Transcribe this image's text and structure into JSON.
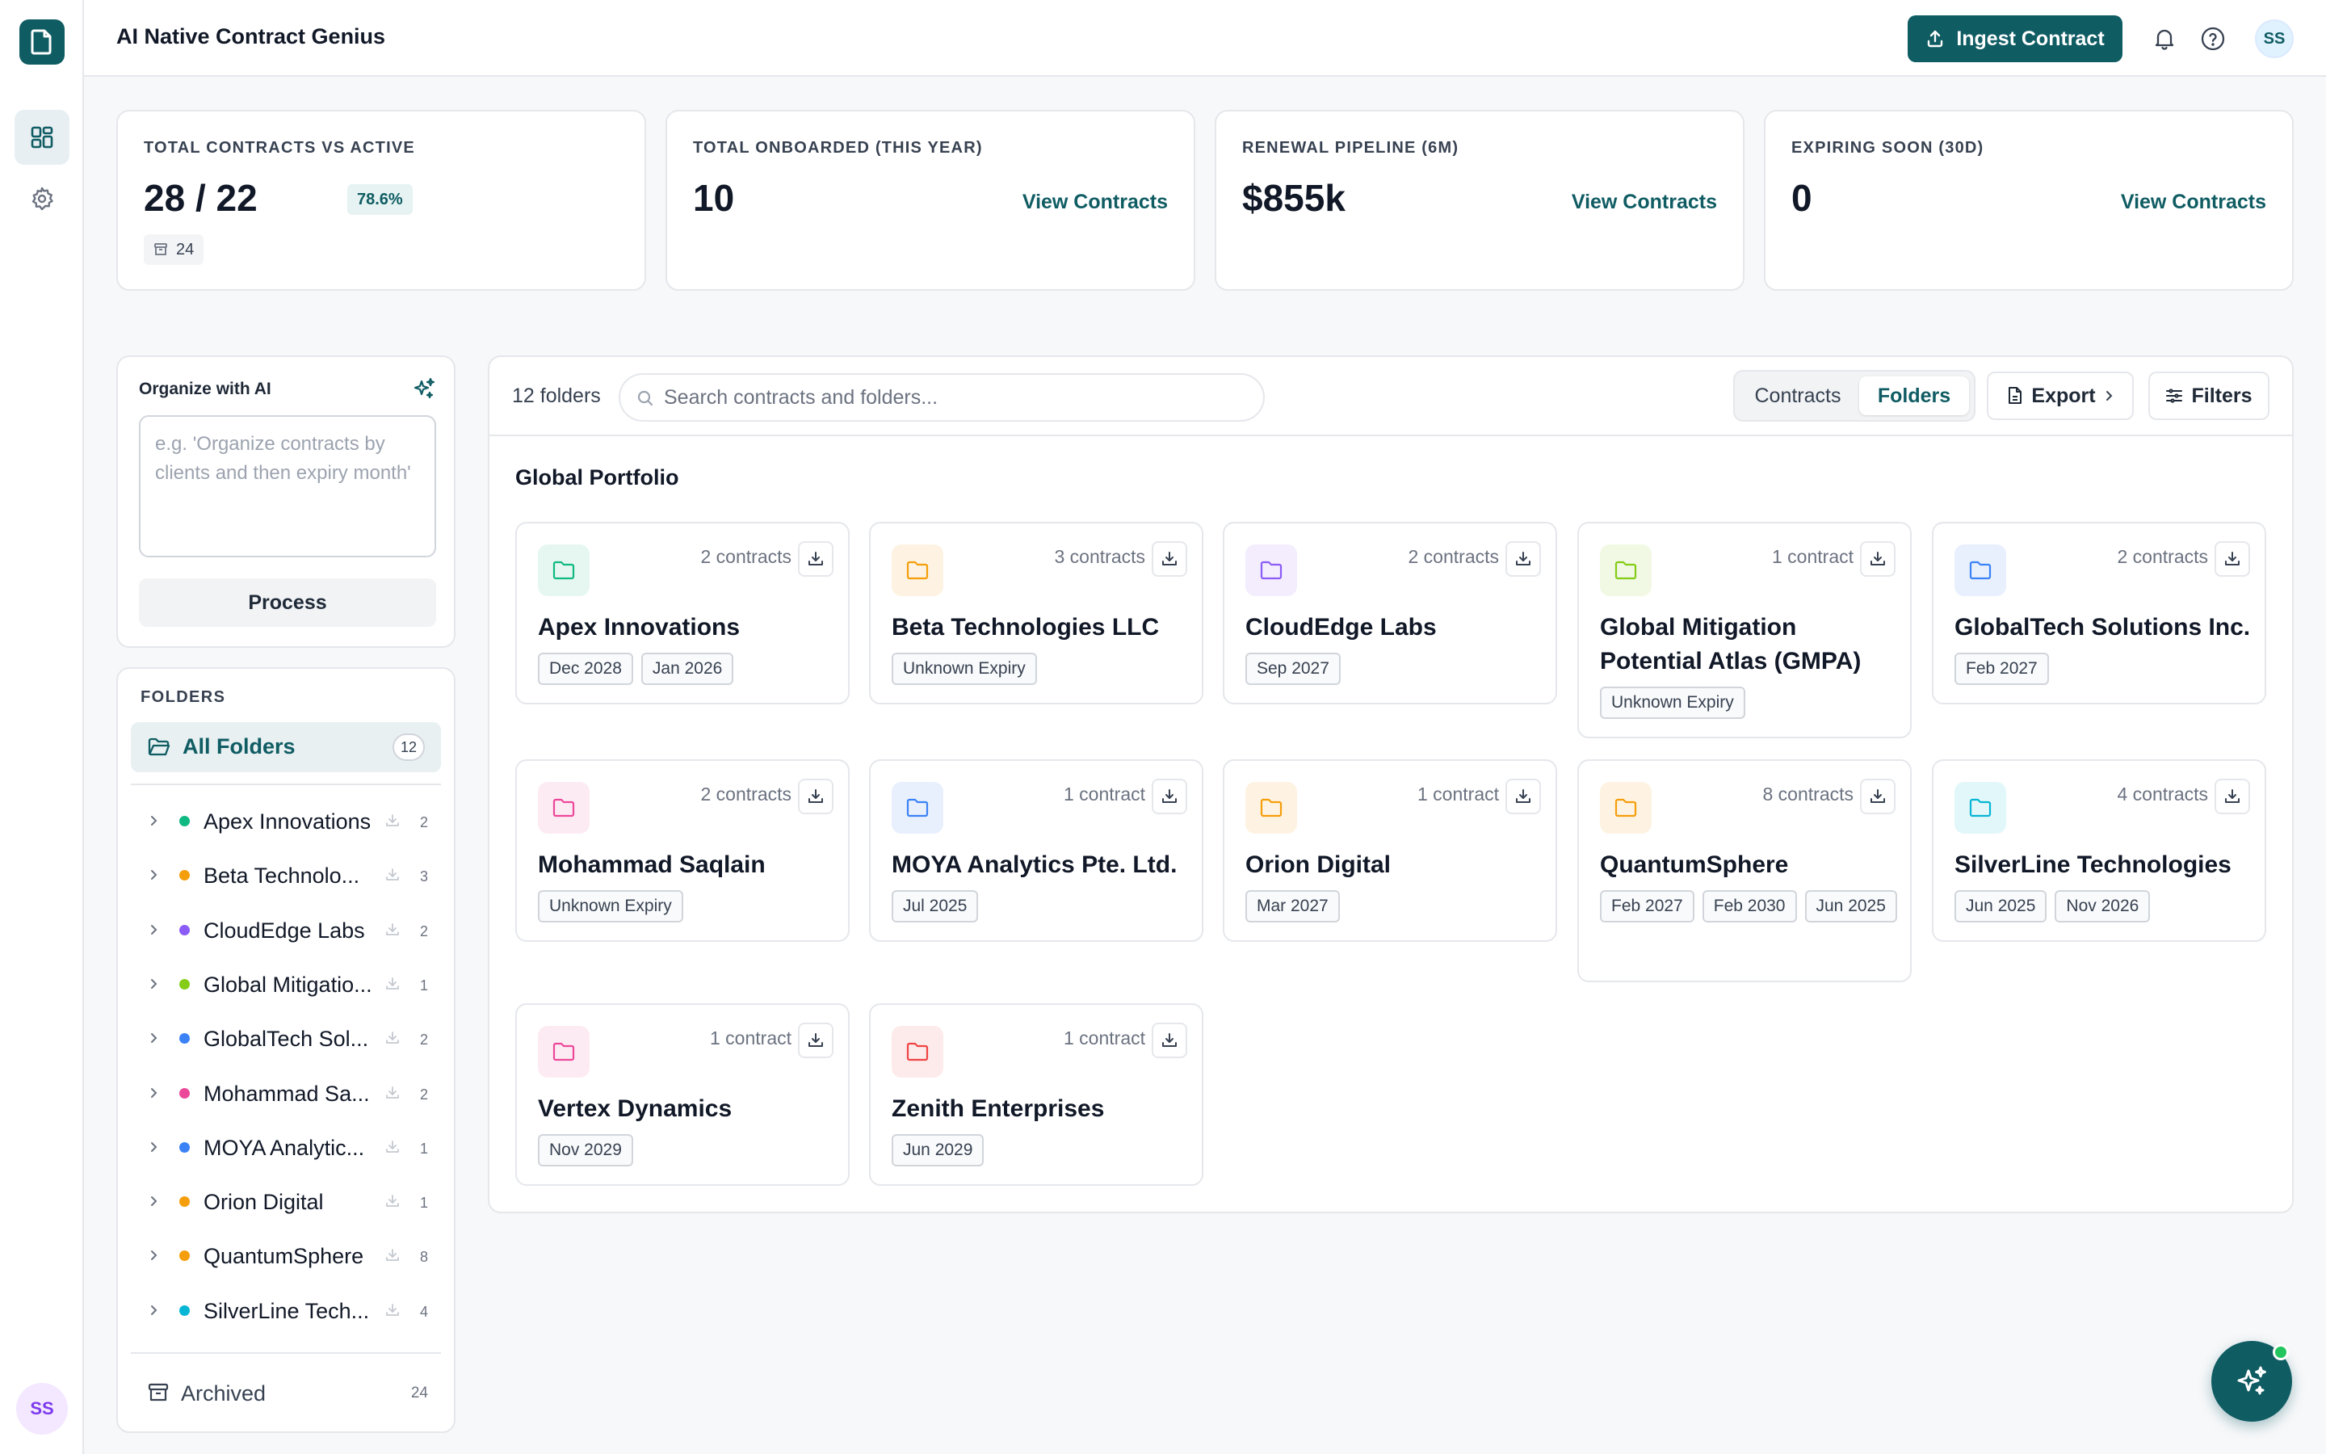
{
  "app": {
    "title": "AI Native Contract Genius",
    "user_initials": "SS"
  },
  "header": {
    "ingest_label": "Ingest Contract",
    "icons": [
      "bell-icon",
      "help-icon"
    ]
  },
  "rail": {
    "items": [
      "dashboard-icon",
      "settings-icon"
    ],
    "user_initials": "SS"
  },
  "stats": [
    {
      "label": "TOTAL CONTRACTS VS ACTIVE",
      "value": "28 / 22",
      "badge": "78.6%",
      "archived": "24"
    },
    {
      "label": "TOTAL ONBOARDED (THIS YEAR)",
      "value": "10",
      "link": "View Contracts"
    },
    {
      "label": "RENEWAL PIPELINE (6M)",
      "value": "$855k",
      "link": "View Contracts"
    },
    {
      "label": "EXPIRING SOON (30D)",
      "value": "0",
      "link": "View Contracts"
    }
  ],
  "organize": {
    "title": "Organize with AI",
    "placeholder": "e.g. 'Organize contracts by clients and then expiry month'",
    "button": "Process"
  },
  "sidebar": {
    "label": "FOLDERS",
    "all_folders": {
      "label": "All Folders",
      "count": "12"
    },
    "items": [
      {
        "name": "Apex Innovations",
        "count": "2",
        "color": "#10b981"
      },
      {
        "name": "Beta Technolo...",
        "count": "3",
        "color": "#f59e0b"
      },
      {
        "name": "CloudEdge Labs",
        "count": "2",
        "color": "#8b5cf6"
      },
      {
        "name": "Global Mitigatio...",
        "count": "1",
        "color": "#84cc16"
      },
      {
        "name": "GlobalTech Sol...",
        "count": "2",
        "color": "#3b82f6"
      },
      {
        "name": "Mohammad Sa...",
        "count": "2",
        "color": "#ec4899"
      },
      {
        "name": "MOYA Analytic...",
        "count": "1",
        "color": "#3b82f6"
      },
      {
        "name": "Orion Digital",
        "count": "1",
        "color": "#f59e0b"
      },
      {
        "name": "QuantumSphere",
        "count": "8",
        "color": "#f59e0b"
      },
      {
        "name": "SilverLine Tech...",
        "count": "4",
        "color": "#06b6d4"
      }
    ],
    "archived": {
      "label": "Archived",
      "count": "24"
    }
  },
  "main": {
    "folder_count": "12 folders",
    "search_placeholder": "Search contracts and folders...",
    "view_toggle": {
      "contracts": "Contracts",
      "folders": "Folders",
      "active": "Folders"
    },
    "export_label": "Export",
    "filters_label": "Filters",
    "section_title": "Global Portfolio",
    "folders": [
      {
        "name": "Apex Innovations",
        "count": "2 contracts",
        "color": "#10b981",
        "bg": "#e6f7f1",
        "tags": [
          "Dec 2028",
          "Jan 2026"
        ]
      },
      {
        "name": "Beta Technologies LLC",
        "count": "3 contracts",
        "color": "#f59e0b",
        "bg": "#fef3e2",
        "tags": [
          "Unknown Expiry"
        ]
      },
      {
        "name": "CloudEdge Labs",
        "count": "2 contracts",
        "color": "#8b5cf6",
        "bg": "#f3edfd",
        "tags": [
          "Sep 2027"
        ]
      },
      {
        "name": "Global Mitigation Potential Atlas (GMPA)",
        "count": "1 contract",
        "color": "#84cc16",
        "bg": "#f1f9e4",
        "tags": [
          "Unknown Expiry"
        ]
      },
      {
        "name": "GlobalTech Solutions Inc.",
        "count": "2 contracts",
        "color": "#3b82f6",
        "bg": "#e8f0fd",
        "tags": [
          "Feb 2027"
        ]
      },
      {
        "name": "Mohammad Saqlain",
        "count": "2 contracts",
        "color": "#ec4899",
        "bg": "#fdebf4",
        "tags": [
          "Unknown Expiry"
        ]
      },
      {
        "name": "MOYA Analytics Pte. Ltd.",
        "count": "1 contract",
        "color": "#3b82f6",
        "bg": "#e8f0fd",
        "tags": [
          "Jul 2025"
        ]
      },
      {
        "name": "Orion Digital",
        "count": "1 contract",
        "color": "#f59e0b",
        "bg": "#fef3e2",
        "tags": [
          "Mar 2027"
        ]
      },
      {
        "name": "QuantumSphere",
        "count": "8 contracts",
        "color": "#f59e0b",
        "bg": "#fef3e2",
        "tags": [
          "Feb 2027",
          "Feb 2030",
          "Jun 2025"
        ]
      },
      {
        "name": "SilverLine Technologies",
        "count": "4 contracts",
        "color": "#06b6d4",
        "bg": "#e2f7fa",
        "tags": [
          "Jun 2025",
          "Nov 2026"
        ]
      },
      {
        "name": "Vertex Dynamics",
        "count": "1 contract",
        "color": "#ec4899",
        "bg": "#fdebf4",
        "tags": [
          "Nov 2029"
        ]
      },
      {
        "name": "Zenith Enterprises",
        "count": "1 contract",
        "color": "#ef4444",
        "bg": "#fdeaea",
        "tags": [
          "Jun 2029"
        ]
      }
    ]
  },
  "fab": {
    "icon": "sparkles-icon"
  }
}
